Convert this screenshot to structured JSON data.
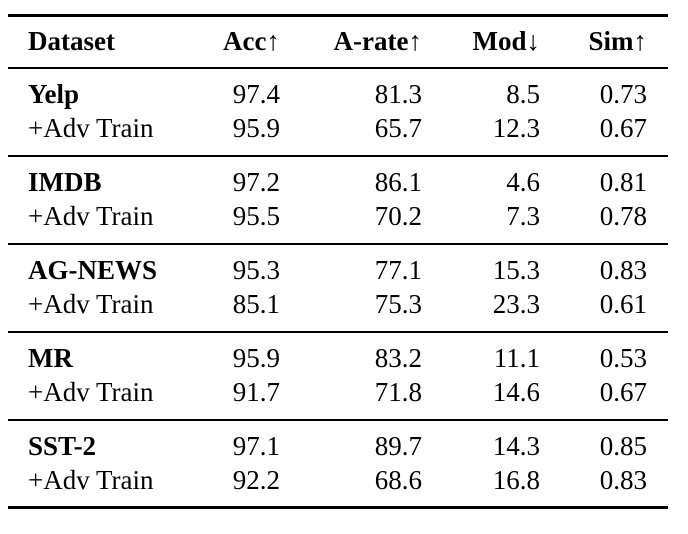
{
  "table": {
    "headers": {
      "dataset": "Dataset",
      "acc": "Acc↑",
      "arate": "A-rate↑",
      "mod": "Mod↓",
      "sim": "Sim↑"
    },
    "groups": [
      {
        "name": "Yelp",
        "base": {
          "acc": "97.4",
          "arate": "81.3",
          "mod": "8.5",
          "sim": "0.73"
        },
        "adv": {
          "label": "+Adv Train",
          "acc": "95.9",
          "arate": "65.7",
          "mod": "12.3",
          "sim": "0.67"
        }
      },
      {
        "name": "IMDB",
        "base": {
          "acc": "97.2",
          "arate": "86.1",
          "mod": "4.6",
          "sim": "0.81"
        },
        "adv": {
          "label": "+Adv Train",
          "acc": "95.5",
          "arate": "70.2",
          "mod": "7.3",
          "sim": "0.78"
        }
      },
      {
        "name": "AG-NEWS",
        "base": {
          "acc": "95.3",
          "arate": "77.1",
          "mod": "15.3",
          "sim": "0.83"
        },
        "adv": {
          "label": "+Adv Train",
          "acc": "85.1",
          "arate": "75.3",
          "mod": "23.3",
          "sim": "0.61"
        }
      },
      {
        "name": "MR",
        "base": {
          "acc": "95.9",
          "arate": "83.2",
          "mod": "11.1",
          "sim": "0.53"
        },
        "adv": {
          "label": "+Adv Train",
          "acc": "91.7",
          "arate": "71.8",
          "mod": "14.6",
          "sim": "0.67"
        }
      },
      {
        "name": "SST-2",
        "base": {
          "acc": "97.1",
          "arate": "89.7",
          "mod": "14.3",
          "sim": "0.85"
        },
        "adv": {
          "label": "+Adv Train",
          "acc": "92.2",
          "arate": "68.6",
          "mod": "16.8",
          "sim": "0.83"
        }
      }
    ]
  }
}
